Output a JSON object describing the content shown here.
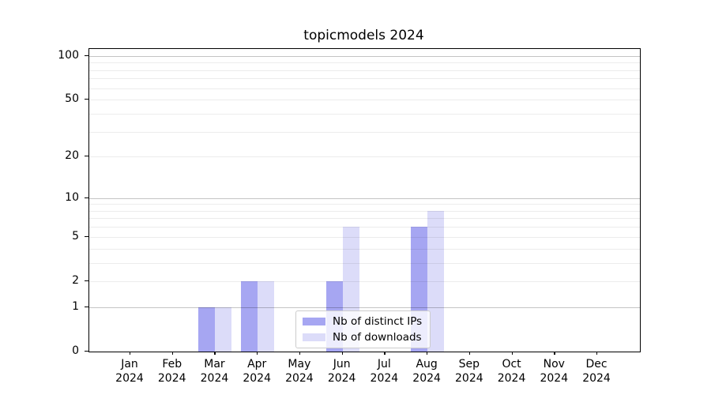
{
  "chart_data": {
    "type": "bar",
    "title": "topicmodels 2024",
    "year": "2024",
    "categories": [
      "Jan",
      "Feb",
      "Mar",
      "Apr",
      "May",
      "Jun",
      "Jul",
      "Aug",
      "Sep",
      "Oct",
      "Nov",
      "Dec"
    ],
    "series": [
      {
        "name": "Nb of distinct IPs",
        "color": "#a6a6f2",
        "values": [
          0,
          0,
          1,
          2,
          0,
          2,
          0,
          6,
          0,
          0,
          0,
          0
        ]
      },
      {
        "name": "Nb of downloads",
        "color": "#dcdcf9",
        "values": [
          0,
          0,
          1,
          2,
          0,
          6,
          0,
          8,
          0,
          0,
          0,
          0
        ]
      }
    ],
    "y_axis": {
      "scale": "log1p",
      "tick_values": [
        0,
        1,
        2,
        5,
        10,
        20,
        50,
        100
      ],
      "major_grid_values": [
        1,
        10,
        100
      ],
      "minor_grid_values": [
        2,
        3,
        4,
        5,
        6,
        7,
        8,
        9,
        20,
        30,
        40,
        50,
        60,
        70,
        80,
        90
      ],
      "ylim": [
        0,
        111
      ]
    },
    "x_axis": {
      "tick_line1": [
        "Jan",
        "Feb",
        "Mar",
        "Apr",
        "May",
        "Jun",
        "Jul",
        "Aug",
        "Sep",
        "Oct",
        "Nov",
        "Dec"
      ],
      "tick_line2": "2024"
    },
    "legend": {
      "position": "lower center",
      "labels": [
        "Nb of distinct IPs",
        "Nb of downloads"
      ]
    },
    "grid": true
  }
}
